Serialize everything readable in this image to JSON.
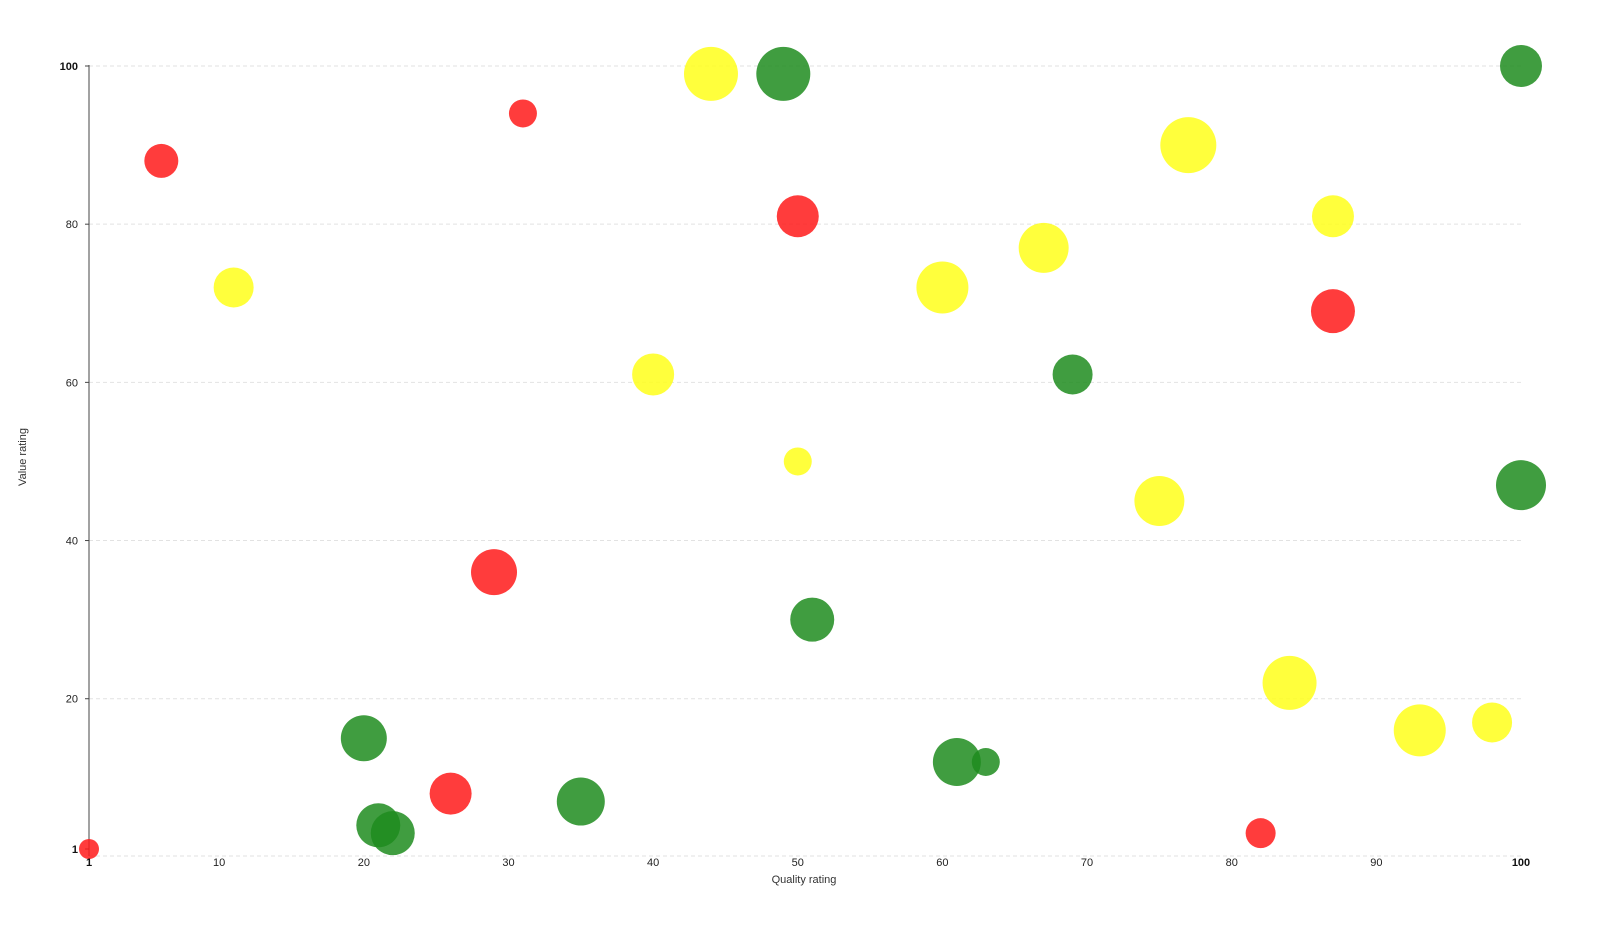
{
  "chart_data": {
    "type": "scatter",
    "title": "",
    "xlabel": "Quality rating",
    "ylabel": "Value rating",
    "xlim": [
      1,
      100
    ],
    "ylim": [
      1,
      100
    ],
    "x_ticks": [
      "1",
      "10",
      "20",
      "30",
      "40",
      "50",
      "60",
      "70",
      "80",
      "90",
      "100"
    ],
    "y_ticks": [
      "1",
      "20",
      "40",
      "60",
      "80",
      "100"
    ],
    "grid": "horizontal dashed",
    "legend": "none",
    "colors": {
      "green": "#1e8c1e",
      "yellow": "#ffff1a",
      "red": "#ff1a1a"
    },
    "points": [
      {
        "x": 1,
        "y": 1,
        "size": 10,
        "color": "red"
      },
      {
        "x": 6,
        "y": 88,
        "size": 17,
        "color": "red"
      },
      {
        "x": 11,
        "y": 72,
        "size": 20,
        "color": "yellow"
      },
      {
        "x": 31,
        "y": 94,
        "size": 14,
        "color": "red"
      },
      {
        "x": 44,
        "y": 99,
        "size": 27,
        "color": "yellow"
      },
      {
        "x": 49,
        "y": 99,
        "size": 27,
        "color": "green"
      },
      {
        "x": 100,
        "y": 100,
        "size": 21,
        "color": "green"
      },
      {
        "x": 77,
        "y": 90,
        "size": 28,
        "color": "yellow"
      },
      {
        "x": 50,
        "y": 81,
        "size": 21,
        "color": "red"
      },
      {
        "x": 87,
        "y": 81,
        "size": 21,
        "color": "yellow"
      },
      {
        "x": 67,
        "y": 77,
        "size": 25,
        "color": "yellow"
      },
      {
        "x": 60,
        "y": 72,
        "size": 26,
        "color": "yellow"
      },
      {
        "x": 87,
        "y": 69,
        "size": 22,
        "color": "red"
      },
      {
        "x": 40,
        "y": 61,
        "size": 21,
        "color": "yellow"
      },
      {
        "x": 69,
        "y": 61,
        "size": 20,
        "color": "green"
      },
      {
        "x": 50,
        "y": 50,
        "size": 14,
        "color": "yellow"
      },
      {
        "x": 75,
        "y": 45,
        "size": 25,
        "color": "yellow"
      },
      {
        "x": 100,
        "y": 47,
        "size": 25,
        "color": "green"
      },
      {
        "x": 29,
        "y": 36,
        "size": 23,
        "color": "red"
      },
      {
        "x": 51,
        "y": 30,
        "size": 22,
        "color": "green"
      },
      {
        "x": 84,
        "y": 22,
        "size": 27,
        "color": "yellow"
      },
      {
        "x": 20,
        "y": 15,
        "size": 23,
        "color": "green"
      },
      {
        "x": 93,
        "y": 16,
        "size": 26,
        "color": "yellow"
      },
      {
        "x": 98,
        "y": 17,
        "size": 20,
        "color": "yellow"
      },
      {
        "x": 61,
        "y": 12,
        "size": 24,
        "color": "green"
      },
      {
        "x": 63,
        "y": 12,
        "size": 14,
        "color": "green"
      },
      {
        "x": 26,
        "y": 8,
        "size": 21,
        "color": "red"
      },
      {
        "x": 35,
        "y": 7,
        "size": 24,
        "color": "green"
      },
      {
        "x": 21,
        "y": 4,
        "size": 22,
        "color": "green"
      },
      {
        "x": 22,
        "y": 3,
        "size": 22,
        "color": "green"
      },
      {
        "x": 82,
        "y": 3,
        "size": 15,
        "color": "red"
      }
    ]
  }
}
